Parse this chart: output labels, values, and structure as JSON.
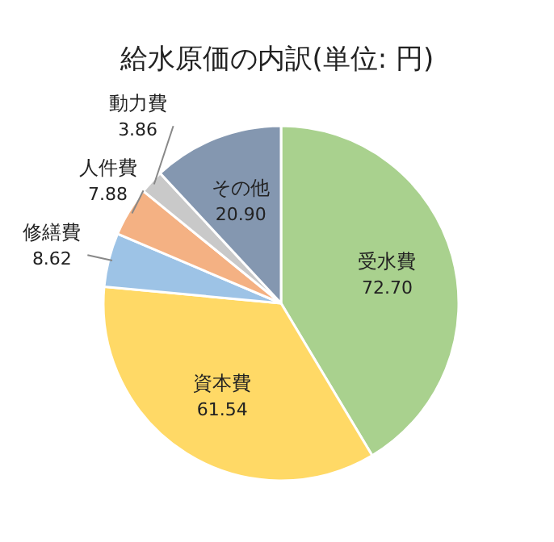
{
  "chart_data": {
    "type": "pie",
    "title": "給水原価の内訳(単位: 円)",
    "categories": [
      "受水費",
      "資本費",
      "修繕費",
      "人件費",
      "動力費",
      "その他"
    ],
    "values": [
      72.7,
      61.54,
      8.62,
      7.88,
      3.86,
      20.9
    ],
    "colors": [
      "#a9d18e",
      "#ffd966",
      "#9dc3e6",
      "#f4b183",
      "#c9c9c9",
      "#8497b0"
    ],
    "value_labels": [
      "72.70",
      "61.54",
      "8.62",
      "7.88",
      "3.86",
      "20.90"
    ]
  }
}
